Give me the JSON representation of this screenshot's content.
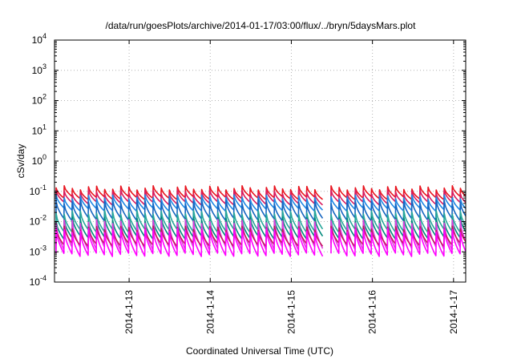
{
  "chart_data": {
    "type": "line",
    "title": "/data/run/goesPlots/archive/2014-01-17/03:00/flux/../bryn/5daysMars.plot",
    "xlabel": "Coordinated Universal Time (UTC)",
    "ylabel": "cSv/day",
    "yscale": "log",
    "ylim": [
      0.0001,
      10000
    ],
    "xlim": [
      12.08,
      17.15
    ],
    "grid": true,
    "x_ticks": [
      {
        "value": 13,
        "label": "2014-1-13"
      },
      {
        "value": 14,
        "label": "2014-1-14"
      },
      {
        "value": 15,
        "label": "2014-1-15"
      },
      {
        "value": 16,
        "label": "2014-1-16"
      },
      {
        "value": 17,
        "label": "2014-1-17"
      }
    ],
    "y_ticks": [
      {
        "value": 0.0001,
        "base": "10",
        "exp": "-4"
      },
      {
        "value": 0.001,
        "base": "10",
        "exp": "-3"
      },
      {
        "value": 0.01,
        "base": "10",
        "exp": "-2"
      },
      {
        "value": 0.1,
        "base": "10",
        "exp": "-1"
      },
      {
        "value": 1,
        "base": "10",
        "exp": "0"
      },
      {
        "value": 10,
        "base": "10",
        "exp": "1"
      },
      {
        "value": 100,
        "base": "10",
        "exp": "2"
      },
      {
        "value": 1000,
        "base": "10",
        "exp": "3"
      },
      {
        "value": 10000,
        "base": "10",
        "exp": "4"
      }
    ],
    "pattern": {
      "sawtooth_period_days": 0.0997,
      "first_peak_day": 12.1,
      "data_gap": [
        15.38,
        15.42
      ]
    },
    "series": [
      {
        "color": "#e8141e",
        "peak": 0.13,
        "trough": 0.06
      },
      {
        "color": "#d81b60",
        "peak": 0.095,
        "trough": 0.04
      },
      {
        "color": "#1e88e5",
        "peak": 0.065,
        "trough": 0.025
      },
      {
        "color": "#1565c0",
        "peak": 0.045,
        "trough": 0.012
      },
      {
        "color": "#26a69a",
        "peak": 0.02,
        "trough": 0.005
      },
      {
        "color": "#00897b",
        "peak": 0.012,
        "trough": 0.003
      },
      {
        "color": "#e040e0",
        "peak": 0.01,
        "trough": 0.0013
      },
      {
        "color": "#c2185b",
        "peak": 0.006,
        "trough": 0.0017
      },
      {
        "color": "#ff00ff",
        "peak": 0.005,
        "trough": 0.0008
      }
    ]
  }
}
